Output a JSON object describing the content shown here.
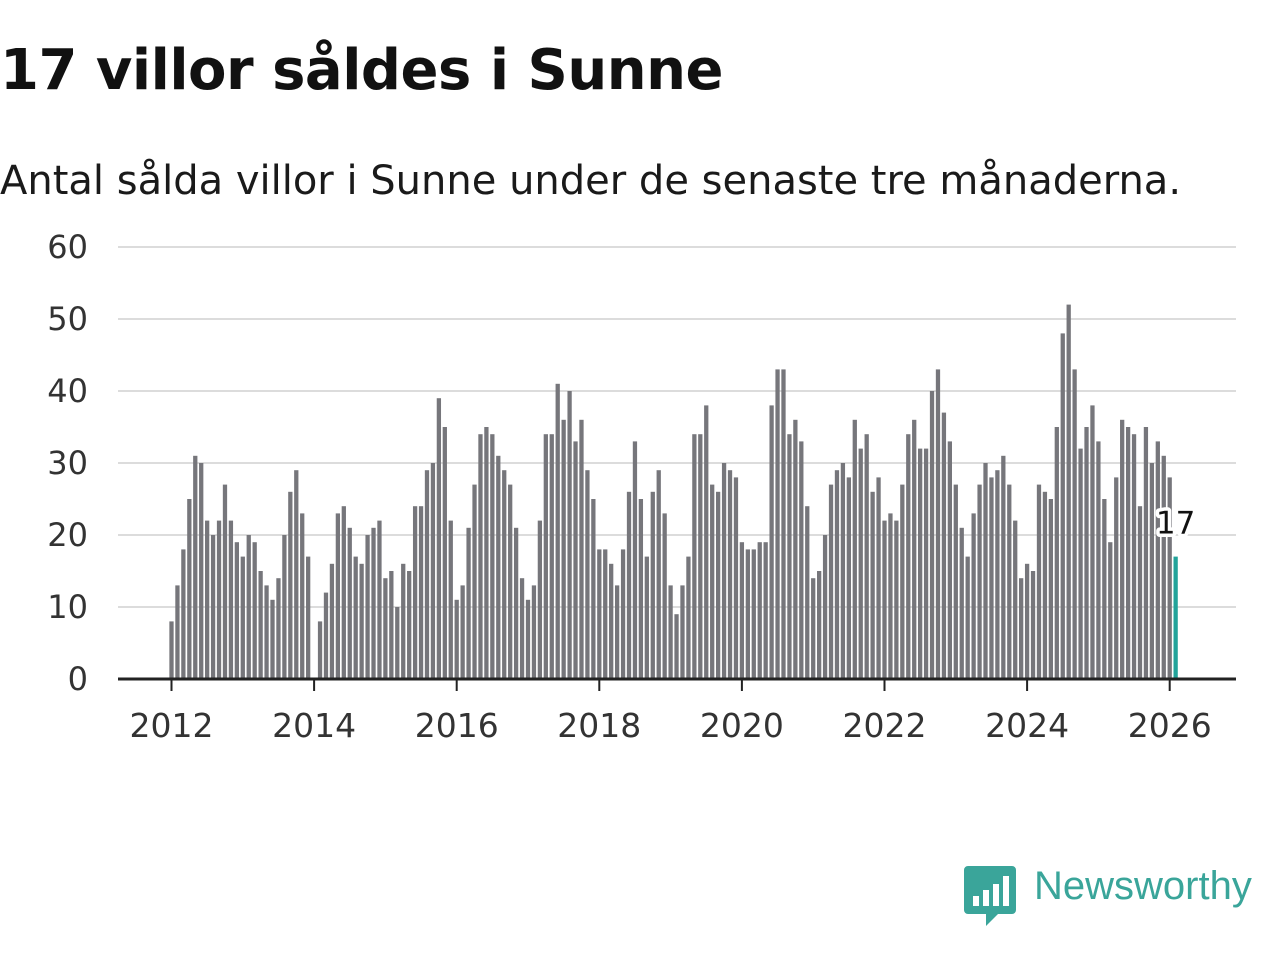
{
  "title": "17 villor såldes i Sunne",
  "subtitle": "Antal sålda villor i Sunne under de senaste tre månaderna.",
  "logo": {
    "text": "Newsworthy",
    "icon": "bar-chart-bubble-icon",
    "color": "#3aa59a"
  },
  "chart_data": {
    "type": "bar",
    "title": "17 villor såldes i Sunne",
    "ylim": [
      0,
      60
    ],
    "yticks": [
      "0",
      "10",
      "20",
      "30",
      "40",
      "50",
      "60"
    ],
    "xticks": [
      "2012",
      "2014",
      "2016",
      "2018",
      "2020",
      "2022",
      "2024",
      "2026"
    ],
    "x_start": "2012-01",
    "values": [
      8,
      13,
      18,
      25,
      31,
      30,
      22,
      20,
      22,
      27,
      22,
      19,
      17,
      20,
      19,
      15,
      13,
      11,
      14,
      20,
      26,
      29,
      23,
      17,
      0,
      8,
      12,
      16,
      23,
      24,
      21,
      17,
      16,
      20,
      21,
      22,
      14,
      15,
      10,
      16,
      15,
      24,
      24,
      29,
      30,
      39,
      35,
      22,
      11,
      13,
      21,
      27,
      34,
      35,
      34,
      31,
      29,
      27,
      21,
      14,
      11,
      13,
      22,
      34,
      34,
      41,
      36,
      40,
      33,
      36,
      29,
      25,
      18,
      18,
      16,
      13,
      18,
      26,
      33,
      25,
      17,
      26,
      29,
      23,
      13,
      9,
      13,
      17,
      34,
      34,
      38,
      27,
      26,
      30,
      29,
      28,
      19,
      18,
      18,
      19,
      19,
      38,
      43,
      43,
      34,
      36,
      33,
      24,
      14,
      15,
      20,
      27,
      29,
      30,
      28,
      36,
      32,
      34,
      26,
      28,
      22,
      23,
      22,
      27,
      34,
      36,
      32,
      32,
      40,
      43,
      37,
      33,
      27,
      21,
      17,
      23,
      27,
      30,
      28,
      29,
      31,
      27,
      22,
      14,
      16,
      15,
      27,
      26,
      25,
      35,
      48,
      52,
      43,
      32,
      35,
      38,
      33,
      25,
      19,
      28,
      36,
      35,
      34,
      24,
      35,
      30,
      33,
      31,
      28,
      17
    ],
    "bar_color": "#76767b",
    "highlight_color": "#22a39a",
    "highlight_label": "17",
    "grid": true
  }
}
